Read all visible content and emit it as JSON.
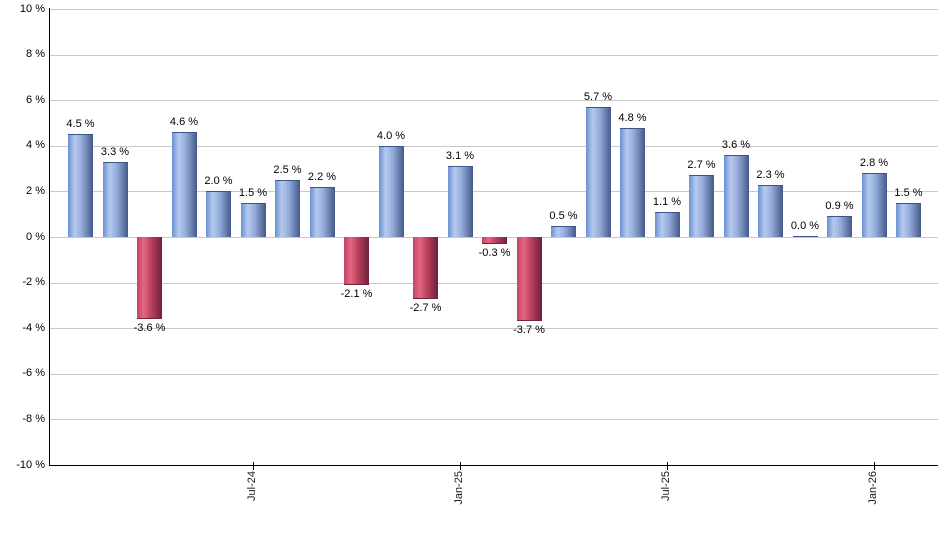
{
  "chart_data": {
    "type": "bar",
    "title": "",
    "xlabel": "",
    "ylabel": "",
    "ylim": [
      -10,
      10
    ],
    "ytick_step": 2,
    "grid": true,
    "legend": "none",
    "y_tick_labels": [
      "10 %",
      "8 %",
      "6 %",
      "4 %",
      "2 %",
      "0 %",
      "-2 %",
      "-4 %",
      "-6 %",
      "-8 %",
      "-10 %"
    ],
    "x_ticks": [
      {
        "bar_index": 5,
        "label": "Jul-24"
      },
      {
        "bar_index": 11,
        "label": "Jan-25"
      },
      {
        "bar_index": 17,
        "label": "Jul-25"
      },
      {
        "bar_index": 23,
        "label": "Jan-26"
      }
    ],
    "series": [
      {
        "name": "monthly-return-percent",
        "values": [
          4.5,
          3.3,
          -3.6,
          4.6,
          2.0,
          1.5,
          2.5,
          2.2,
          -2.1,
          4.0,
          -2.7,
          3.1,
          -0.3,
          -3.7,
          0.5,
          5.7,
          4.8,
          1.1,
          2.7,
          3.6,
          2.3,
          0.0,
          0.9,
          2.8,
          1.5
        ]
      }
    ],
    "bar_value_labels": [
      "4.5 %",
      "3.3 %",
      "-3.6 %",
      "4.6 %",
      "2.0 %",
      "1.5 %",
      "2.5 %",
      "2.2 %",
      "-2.1 %",
      "4.0 %",
      "-2.7 %",
      "3.1 %",
      "-0.3 %",
      "-3.7 %",
      "0.5 %",
      "5.7 %",
      "4.8 %",
      "1.1 %",
      "2.7 %",
      "3.6 %",
      "2.3 %",
      "0.0 %",
      "0.9 %",
      "2.8 %",
      "1.5 %"
    ],
    "colors": {
      "positive_bar_gradient": [
        "#6a90d2",
        "#b5caee",
        "#93abd9",
        "#44598a"
      ],
      "positive_bar_edge": "#3c568c",
      "negative_bar_gradient": [
        "#c24464",
        "#e56681",
        "#bb4260",
        "#6e2139"
      ],
      "negative_bar_edge": "#732239",
      "gridline": "#c9c9c9",
      "axis": "#000000",
      "label_text": "#000000",
      "background": "#ffffff"
    }
  }
}
